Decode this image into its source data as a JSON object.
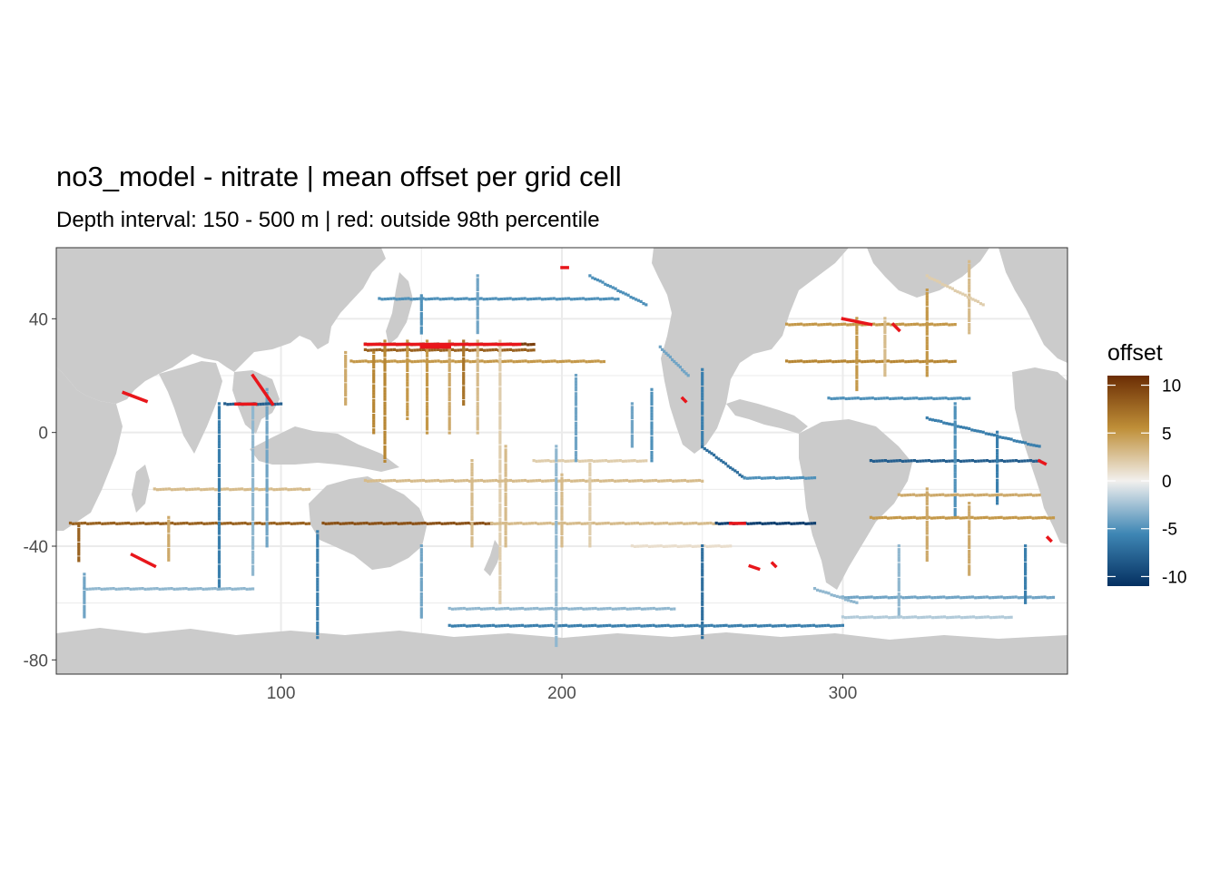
{
  "title": "no3_model - nitrate  | mean offset per grid cell",
  "subtitle": "Depth interval: 150 - 500 m | red: outside 98th percentile",
  "colors": {
    "land": "#cbcbcb",
    "ocean": "#ffffff",
    "outlier": "#e8161b",
    "grid": "#ebebeb",
    "panel_border": "#333333",
    "scale_high": "#6b2d04",
    "scale_mid_high": "#bf8f38",
    "scale_mid": "#f2f0ee",
    "scale_mid_low": "#3f87b5",
    "scale_low": "#053061"
  },
  "chart_data": {
    "type": "heatmap",
    "xlim": [
      20,
      380
    ],
    "ylim": [
      -85,
      65
    ],
    "x_ticks": [
      100,
      200,
      300
    ],
    "y_ticks": [
      40,
      0,
      -40,
      -80
    ],
    "x_tick_labels": [
      "100",
      "200",
      "300"
    ],
    "y_tick_labels": [
      "40",
      "0",
      "-40",
      "-80"
    ],
    "grid": true,
    "legend": {
      "title": "offset",
      "placement": "right",
      "limits": [
        -11,
        11
      ],
      "ticks": [
        10,
        5,
        0,
        -5,
        -10
      ],
      "tick_labels": [
        "10",
        "5",
        "0",
        "-5",
        "-10"
      ]
    },
    "outlier_rule": "outside 98th percentile",
    "tracks": [
      {
        "lon": [
          130,
          190
        ],
        "lat": [
          31,
          31
        ],
        "offset": 10
      },
      {
        "lon": [
          130,
          190
        ],
        "lat": [
          29,
          29
        ],
        "offset": 8
      },
      {
        "lon": [
          125,
          215
        ],
        "lat": [
          25,
          25
        ],
        "offset": 5
      },
      {
        "lon": [
          137,
          137
        ],
        "lat": [
          32,
          -10
        ],
        "offset": 6
      },
      {
        "lon": [
          145,
          145
        ],
        "lat": [
          32,
          5
        ],
        "offset": 5
      },
      {
        "lon": [
          152,
          152
        ],
        "lat": [
          32,
          0
        ],
        "offset": 5
      },
      {
        "lon": [
          160,
          160
        ],
        "lat": [
          32,
          0
        ],
        "offset": 4
      },
      {
        "lon": [
          165,
          165
        ],
        "lat": [
          32,
          10
        ],
        "offset": 7
      },
      {
        "lon": [
          170,
          170
        ],
        "lat": [
          32,
          0
        ],
        "offset": 3
      },
      {
        "lon": [
          178,
          178
        ],
        "lat": [
          32,
          -60
        ],
        "offset": 2
      },
      {
        "lon": [
          123,
          123
        ],
        "lat": [
          28,
          10
        ],
        "offset": 4
      },
      {
        "lon": [
          133,
          133
        ],
        "lat": [
          28,
          0
        ],
        "offset": 6
      },
      {
        "lon": [
          115,
          175
        ],
        "lat": [
          -32,
          -32
        ],
        "offset": 9
      },
      {
        "lon": [
          175,
          255
        ],
        "lat": [
          -32,
          -32
        ],
        "offset": 3
      },
      {
        "lon": [
          255,
          290
        ],
        "lat": [
          -32,
          -32
        ],
        "offset": -10
      },
      {
        "lon": [
          25,
          110
        ],
        "lat": [
          -32,
          -32
        ],
        "offset": 8
      },
      {
        "lon": [
          28,
          28
        ],
        "lat": [
          -33,
          -45
        ],
        "offset": 8
      },
      {
        "lon": [
          60,
          60
        ],
        "lat": [
          -30,
          -45
        ],
        "offset": 4
      },
      {
        "lon": [
          55,
          110
        ],
        "lat": [
          -20,
          -20
        ],
        "offset": 3
      },
      {
        "lon": [
          130,
          250
        ],
        "lat": [
          -17,
          -17
        ],
        "offset": 3
      },
      {
        "lon": [
          180,
          180
        ],
        "lat": [
          -5,
          -40
        ],
        "offset": 3
      },
      {
        "lon": [
          200,
          200
        ],
        "lat": [
          -15,
          -40
        ],
        "offset": 3
      },
      {
        "lon": [
          168,
          168
        ],
        "lat": [
          -10,
          -40
        ],
        "offset": 3
      },
      {
        "lon": [
          210,
          210
        ],
        "lat": [
          -10,
          -40
        ],
        "offset": 2
      },
      {
        "lon": [
          190,
          230
        ],
        "lat": [
          -10,
          -10
        ],
        "offset": 2
      },
      {
        "lon": [
          225,
          260
        ],
        "lat": [
          -40,
          -40
        ],
        "offset": 1
      },
      {
        "lon": [
          205,
          205
        ],
        "lat": [
          20,
          -10
        ],
        "offset": -4
      },
      {
        "lon": [
          225,
          225
        ],
        "lat": [
          10,
          -5
        ],
        "offset": -4
      },
      {
        "lon": [
          232,
          232
        ],
        "lat": [
          15,
          -10
        ],
        "offset": -5
      },
      {
        "lon": [
          250,
          250
        ],
        "lat": [
          22,
          -5
        ],
        "offset": -6
      },
      {
        "lon": [
          250,
          265
        ],
        "lat": [
          -5,
          -16
        ],
        "offset": -7
      },
      {
        "lon": [
          265,
          290
        ],
        "lat": [
          -16,
          -16
        ],
        "offset": -5
      },
      {
        "lon": [
          250,
          250
        ],
        "lat": [
          -40,
          -72
        ],
        "offset": -7
      },
      {
        "lon": [
          160,
          300
        ],
        "lat": [
          -68,
          -68
        ],
        "offset": -6
      },
      {
        "lon": [
          160,
          240
        ],
        "lat": [
          -62,
          -62
        ],
        "offset": -3
      },
      {
        "lon": [
          198,
          198
        ],
        "lat": [
          -5,
          -75
        ],
        "offset": -3
      },
      {
        "lon": [
          150,
          150
        ],
        "lat": [
          -40,
          -65
        ],
        "offset": -4
      },
      {
        "lon": [
          113,
          113
        ],
        "lat": [
          -35,
          -72
        ],
        "offset": -6
      },
      {
        "lon": [
          90,
          90
        ],
        "lat": [
          10,
          -50
        ],
        "offset": -3
      },
      {
        "lon": [
          78,
          78
        ],
        "lat": [
          10,
          -55
        ],
        "offset": -6
      },
      {
        "lon": [
          95,
          95
        ],
        "lat": [
          15,
          -40
        ],
        "offset": -4
      },
      {
        "lon": [
          30,
          90
        ],
        "lat": [
          -55,
          -55
        ],
        "offset": -3
      },
      {
        "lon": [
          30,
          30
        ],
        "lat": [
          -50,
          -65
        ],
        "offset": -4
      },
      {
        "lon": [
          80,
          100
        ],
        "lat": [
          10,
          10
        ],
        "offset": -8
      },
      {
        "lon": [
          135,
          220
        ],
        "lat": [
          47,
          47
        ],
        "offset": -5
      },
      {
        "lon": [
          150,
          150
        ],
        "lat": [
          48,
          35
        ],
        "offset": -5
      },
      {
        "lon": [
          170,
          170
        ],
        "lat": [
          55,
          35
        ],
        "offset": -4
      },
      {
        "lon": [
          210,
          230
        ],
        "lat": [
          55,
          45
        ],
        "offset": -5
      },
      {
        "lon": [
          235,
          245
        ],
        "lat": [
          30,
          20
        ],
        "offset": -4
      },
      {
        "lon": [
          280,
          340
        ],
        "lat": [
          38,
          38
        ],
        "offset": 5
      },
      {
        "lon": [
          280,
          340
        ],
        "lat": [
          25,
          25
        ],
        "offset": 6
      },
      {
        "lon": [
          305,
          305
        ],
        "lat": [
          40,
          15
        ],
        "offset": 5
      },
      {
        "lon": [
          315,
          315
        ],
        "lat": [
          40,
          20
        ],
        "offset": 3
      },
      {
        "lon": [
          330,
          330
        ],
        "lat": [
          50,
          20
        ],
        "offset": 5
      },
      {
        "lon": [
          345,
          345
        ],
        "lat": [
          60,
          35
        ],
        "offset": 3
      },
      {
        "lon": [
          330,
          350
        ],
        "lat": [
          55,
          45
        ],
        "offset": 2
      },
      {
        "lon": [
          295,
          345
        ],
        "lat": [
          12,
          12
        ],
        "offset": -5
      },
      {
        "lon": [
          310,
          370
        ],
        "lat": [
          -10,
          -10
        ],
        "offset": -8
      },
      {
        "lon": [
          330,
          370
        ],
        "lat": [
          5,
          -5
        ],
        "offset": -6
      },
      {
        "lon": [
          340,
          340
        ],
        "lat": [
          10,
          -30
        ],
        "offset": -5
      },
      {
        "lon": [
          355,
          355
        ],
        "lat": [
          0,
          -25
        ],
        "offset": -6
      },
      {
        "lon": [
          310,
          375
        ],
        "lat": [
          -30,
          -30
        ],
        "offset": 5
      },
      {
        "lon": [
          320,
          370
        ],
        "lat": [
          -22,
          -22
        ],
        "offset": 4
      },
      {
        "lon": [
          330,
          330
        ],
        "lat": [
          -20,
          -45
        ],
        "offset": 4
      },
      {
        "lon": [
          345,
          345
        ],
        "lat": [
          -25,
          -50
        ],
        "offset": 4
      },
      {
        "lon": [
          300,
          375
        ],
        "lat": [
          -58,
          -58
        ],
        "offset": -4
      },
      {
        "lon": [
          320,
          320
        ],
        "lat": [
          -40,
          -65
        ],
        "offset": -3
      },
      {
        "lon": [
          300,
          360
        ],
        "lat": [
          -65,
          -65
        ],
        "offset": -2
      },
      {
        "lon": [
          365,
          365
        ],
        "lat": [
          -40,
          -60
        ],
        "offset": -6
      },
      {
        "lon": [
          290,
          305
        ],
        "lat": [
          -55,
          -60
        ],
        "offset": -3
      }
    ],
    "outliers": [
      {
        "lon": [
          90,
          97
        ],
        "lat": [
          20,
          10
        ]
      },
      {
        "lon": [
          84,
          91
        ],
        "lat": [
          10,
          10
        ]
      },
      {
        "lon": [
          44,
          52
        ],
        "lat": [
          14,
          11
        ]
      },
      {
        "lon": [
          47,
          55
        ],
        "lat": [
          -43,
          -47
        ]
      },
      {
        "lon": [
          130,
          185
        ],
        "lat": [
          31,
          31
        ]
      },
      {
        "lon": [
          150,
          160
        ],
        "lat": [
          30,
          30
        ]
      },
      {
        "lon": [
          300,
          310
        ],
        "lat": [
          40,
          38
        ]
      },
      {
        "lon": [
          318,
          320
        ],
        "lat": [
          38,
          36
        ]
      },
      {
        "lon": [
          370,
          372
        ],
        "lat": [
          -10,
          -11
        ]
      },
      {
        "lon": [
          260,
          265
        ],
        "lat": [
          -32,
          -32
        ]
      },
      {
        "lon": [
          267,
          270
        ],
        "lat": [
          -47,
          -48
        ]
      },
      {
        "lon": [
          200,
          202
        ],
        "lat": [
          58,
          58
        ]
      },
      {
        "lon": [
          243,
          244
        ],
        "lat": [
          12,
          11
        ]
      },
      {
        "lon": [
          373,
          374
        ],
        "lat": [
          -37,
          -38
        ]
      },
      {
        "lon": [
          275,
          276
        ],
        "lat": [
          -46,
          -47
        ]
      }
    ]
  }
}
